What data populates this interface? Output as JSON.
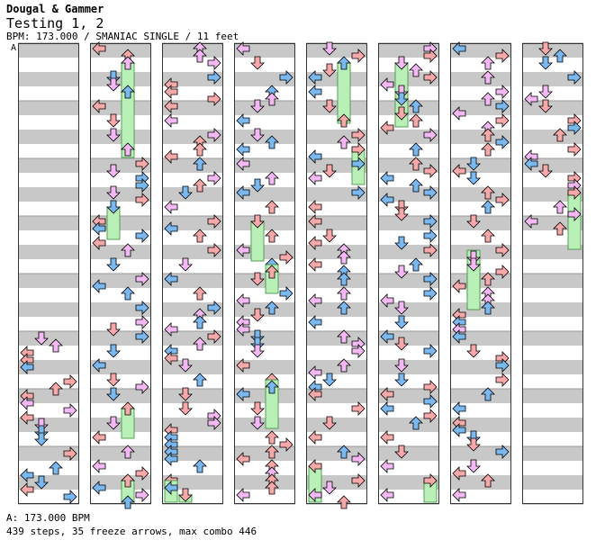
{
  "header": {
    "artist": "Dougal & Gammer",
    "title": "Testing 1, 2",
    "chart_info": "BPM: 173.000 / SMANIAC SINGLE / 11 feet",
    "bpm_marker": "A"
  },
  "footer": {
    "bpm_line": "A: 173.000 BPM",
    "stats_line": "439 steps, 35 freeze arrows, max combo 446"
  },
  "colors": {
    "band": "#c8c8c8",
    "measure_line": "#999999",
    "left_arrow": "#f7a8a8",
    "down_arrow": "#7ab8f0",
    "up_arrow": "#7ab8f0",
    "right_arrow": "#f7a8a8",
    "quarter_arrow": "#f7a8a8",
    "eighth_arrow": "#7ab8f0",
    "sixteenth_arrow": "#f4b8f4",
    "freeze": "#b8f0b8"
  },
  "chart": {
    "type": "step-chart",
    "columns": 8,
    "measures_per_column": 8,
    "lanes": [
      "left",
      "down",
      "up",
      "right"
    ],
    "steps": 439,
    "freeze_arrows": 35,
    "max_combo": 446,
    "bpm": 173.0
  }
}
